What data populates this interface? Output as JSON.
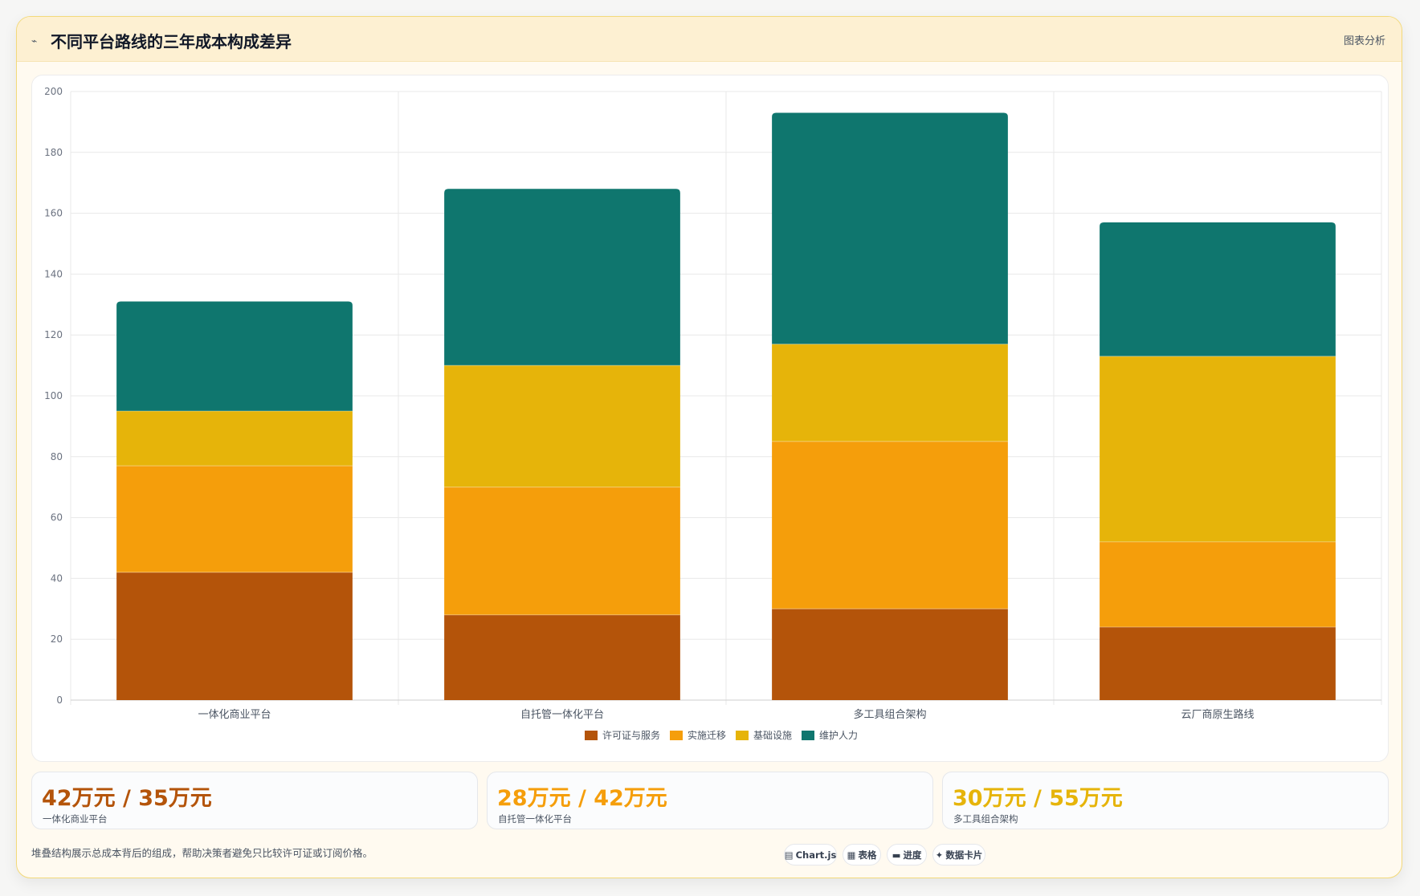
{
  "header": {
    "icon": "chart-line-icon",
    "title": "不同平台路线的三年成本构成差异",
    "tag": "图表分析"
  },
  "chart_data": {
    "type": "bar",
    "stacked": true,
    "categories": [
      "一体化商业平台",
      "自托管一体化平台",
      "多工具组合架构",
      "云厂商原生路线"
    ],
    "series": [
      {
        "name": "许可证与服务",
        "color": "#b4540a",
        "values": [
          42,
          28,
          30,
          24
        ]
      },
      {
        "name": "实施迁移",
        "color": "#f59e0b",
        "values": [
          35,
          42,
          55,
          28
        ]
      },
      {
        "name": "基础设施",
        "color": "#e6b40a",
        "values": [
          18,
          40,
          32,
          61
        ]
      },
      {
        "name": "维护人力",
        "color": "#0f766e",
        "values": [
          36,
          58,
          76,
          44
        ]
      }
    ],
    "ylim": [
      0,
      200
    ],
    "yticks": [
      0,
      20,
      40,
      60,
      80,
      100,
      120,
      140,
      160,
      180,
      200
    ],
    "grid": true,
    "legend_position": "bottom"
  },
  "stats": [
    {
      "value": "42万元 / 35万元",
      "label": "一体化商业平台",
      "color": "#b4540a"
    },
    {
      "value": "28万元 / 42万元",
      "label": "自托管一体化平台",
      "color": "#f59e0b"
    },
    {
      "value": "30万元 / 55万元",
      "label": "多工具组合架构",
      "color": "#e6b40a"
    }
  ],
  "footnote": "堆叠结构展示总成本背后的组成，帮助决策者避免只比较许可证或订阅价格。",
  "pills": [
    {
      "icon": "chart-icon",
      "glyph": "▤",
      "label": "Chart.js"
    },
    {
      "icon": "table-icon",
      "glyph": "▦",
      "label": "表格"
    },
    {
      "icon": "progress-icon",
      "glyph": "▬",
      "label": "进度"
    },
    {
      "icon": "card-icon",
      "glyph": "✦",
      "label": "数据卡片"
    }
  ]
}
